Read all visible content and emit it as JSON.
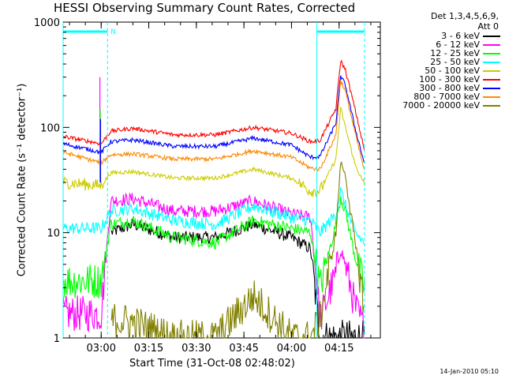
{
  "chart_data": {
    "type": "line",
    "title": "HESSI Observing Summary Count Rates, Corrected",
    "xlabel": "Start Time (31-Oct-08 02:48:02)",
    "ylabel": "Corrected Count Rate (s⁻¹ detector⁻¹)",
    "yscale": "log",
    "ylim": [
      1,
      1000
    ],
    "xlim_minutes": [
      0,
      100
    ],
    "x_ticks": [
      {
        "t": 12,
        "label": "03:00"
      },
      {
        "t": 27,
        "label": "03:15"
      },
      {
        "t": 42,
        "label": "03:30"
      },
      {
        "t": 57,
        "label": "03:45"
      },
      {
        "t": 72,
        "label": "04:00"
      },
      {
        "t": 87,
        "label": "04:15"
      }
    ],
    "y_ticks": [
      {
        "value": 1,
        "label": "1"
      },
      {
        "value": 10,
        "label": "10"
      },
      {
        "value": 100,
        "label": "100"
      },
      {
        "value": 1000,
        "label": "1000"
      }
    ],
    "series_keyframes_minutes": [
      0,
      12,
      15,
      22,
      35,
      48,
      60,
      72,
      78,
      81,
      86,
      87.5,
      89,
      92,
      95
    ],
    "series": [
      {
        "name": "3 - 6 keV",
        "color": "#000000",
        "values": [
          null,
          null,
          10,
          12,
          9,
          9,
          12,
          9,
          7,
          1,
          1,
          1,
          1,
          1,
          1
        ]
      },
      {
        "name": "6 - 12 keV",
        "color": "#ff00ff",
        "values": [
          1.7,
          1.7,
          20,
          21,
          16,
          16,
          20,
          15,
          14,
          1.5,
          4,
          7,
          5,
          2,
          1.2
        ]
      },
      {
        "name": "12 - 25 keV",
        "color": "#00ff00",
        "values": [
          3.5,
          3.5,
          12,
          13,
          9,
          8,
          13,
          11,
          10,
          3,
          12,
          22,
          16,
          6,
          3
        ]
      },
      {
        "name": "25 - 50 keV",
        "color": "#00ffff",
        "values": [
          11,
          11,
          16,
          17,
          13,
          12,
          18,
          14,
          13,
          10,
          15,
          25,
          18,
          10,
          8
        ]
      },
      {
        "name": "50 - 100 keV",
        "color": "#cccc00",
        "values": [
          30,
          28,
          37,
          38,
          33,
          33,
          40,
          33,
          25,
          25,
          50,
          150,
          100,
          45,
          28
        ]
      },
      {
        "name": "100 - 300 keV",
        "color": "#ff0000",
        "values": [
          82,
          70,
          92,
          98,
          85,
          85,
          100,
          88,
          73,
          75,
          150,
          430,
          350,
          150,
          60
        ]
      },
      {
        "name": "300 - 800 keV",
        "color": "#0000ff",
        "values": [
          70,
          58,
          73,
          76,
          66,
          66,
          79,
          68,
          52,
          53,
          110,
          310,
          250,
          100,
          45
        ]
      },
      {
        "name": "800 - 7000 keV",
        "color": "#ff8800",
        "values": [
          58,
          46,
          55,
          56,
          50,
          50,
          60,
          52,
          41,
          40,
          85,
          280,
          220,
          90,
          38
        ]
      },
      {
        "name": "7000 - 20000 keV",
        "color": "#808000",
        "values": [
          null,
          null,
          1.5,
          1.4,
          1,
          1,
          2.5,
          1,
          1,
          1.5,
          10,
          47,
          35,
          8,
          2
        ]
      }
    ],
    "spikes": [
      {
        "t": 11.6,
        "color": "#ff00ff",
        "to": 300
      },
      {
        "t": 11.7,
        "color": "#00ff00",
        "to": 150
      },
      {
        "t": 11.8,
        "color": "#0000ff",
        "to": 120
      }
    ],
    "annotations": {
      "night_intervals_minutes": [
        [
          0,
          14
        ],
        [
          80,
          95
        ]
      ],
      "saa_marker_label": "N"
    },
    "legend": {
      "header_line1": "Det 1,3,4,5,6,9,",
      "header_line2": "Att 0",
      "placement": "right"
    },
    "timestamp": "14-Jan-2010 05:10"
  }
}
